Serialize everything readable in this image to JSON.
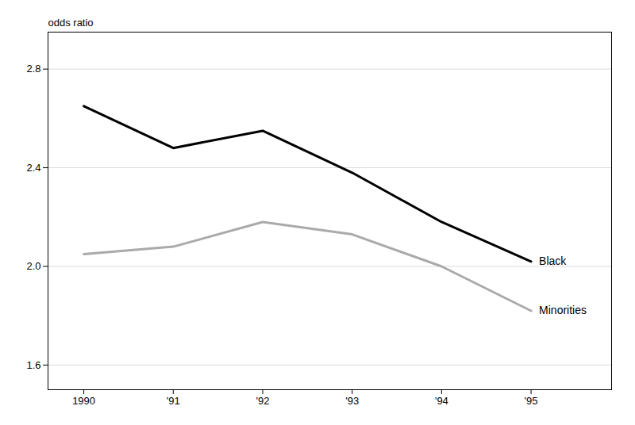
{
  "chart_data": {
    "type": "line",
    "y_label": "odds ratio",
    "x": [
      1990,
      1991,
      1992,
      1993,
      1994,
      1995
    ],
    "series": [
      {
        "name": "Black",
        "color": "#000000",
        "values": [
          2.65,
          2.48,
          2.55,
          2.38,
          2.18,
          2.02
        ]
      },
      {
        "name": "Minorities",
        "color": "#aaaaaa",
        "values": [
          2.05,
          2.08,
          2.18,
          2.13,
          2.0,
          1.82
        ]
      }
    ],
    "xlim": [
      1989.6,
      1995.9
    ],
    "xticks": [
      1990,
      {
        "value": 1991,
        "label": "'91"
      },
      {
        "value": 1992,
        "label": "'92"
      },
      {
        "value": 1993,
        "label": "'93"
      },
      {
        "value": 1994,
        "label": "'94"
      },
      {
        "value": 1995,
        "label": "'95"
      }
    ],
    "ylim": [
      1.5,
      2.95
    ],
    "yticks": [
      1.6,
      {
        "value": 2,
        "label": "2.0"
      },
      2.4,
      2.8
    ],
    "grid": true
  }
}
